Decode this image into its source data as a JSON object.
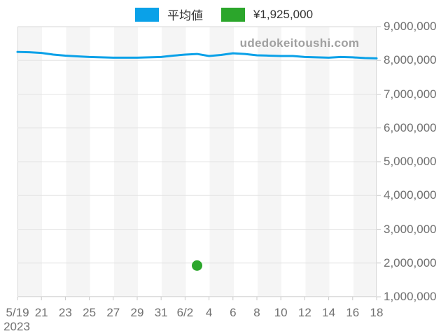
{
  "watermark": "udedokeitoushi.com",
  "legend": {
    "position": "top-center",
    "items": [
      {
        "label": "平均値",
        "color": "#0aa1e8"
      },
      {
        "label": "¥1,925,000",
        "color": "#2ba62b"
      }
    ]
  },
  "chart_data": {
    "type": "line",
    "title": "",
    "xlabel": "",
    "ylabel": "",
    "x_sublabel": "2023",
    "x_labels": [
      "5/19",
      "21",
      "23",
      "25",
      "27",
      "29",
      "31",
      "6/2",
      "4",
      "6",
      "8",
      "10",
      "12",
      "14",
      "16",
      "18"
    ],
    "dates": [
      "5/19",
      "5/20",
      "5/21",
      "5/22",
      "5/23",
      "5/24",
      "5/25",
      "5/26",
      "5/27",
      "5/28",
      "5/29",
      "5/30",
      "5/31",
      "6/1",
      "6/2",
      "6/3",
      "6/4",
      "6/5",
      "6/6",
      "6/7",
      "6/8",
      "6/9",
      "6/10",
      "6/11",
      "6/12",
      "6/13",
      "6/14",
      "6/15",
      "6/16",
      "6/17",
      "6/18"
    ],
    "ylim": [
      1000000,
      9000000
    ],
    "y_ticks": [
      {
        "label": "9,000,000",
        "value": 9000000
      },
      {
        "label": "8,000,000",
        "value": 8000000
      },
      {
        "label": "7,000,000",
        "value": 7000000
      },
      {
        "label": "6,000,000",
        "value": 6000000
      },
      {
        "label": "5,000,000",
        "value": 5000000
      },
      {
        "label": "4,000,000",
        "value": 4000000
      },
      {
        "label": "3,000,000",
        "value": 3000000
      },
      {
        "label": "2,000,000",
        "value": 2000000
      },
      {
        "label": "1,000,000",
        "value": 1000000
      }
    ],
    "grid": "horizontal",
    "plot_band_colors": [
      "#f5f5f5",
      "#ffffff"
    ],
    "legend_position": "top-center",
    "series": [
      {
        "name": "平均値",
        "type": "line",
        "color": "#0aa1e8",
        "values": [
          8250000,
          8240000,
          8220000,
          8170000,
          8140000,
          8120000,
          8100000,
          8090000,
          8080000,
          8080000,
          8080000,
          8090000,
          8100000,
          8140000,
          8170000,
          8190000,
          8130000,
          8160000,
          8210000,
          8190000,
          8150000,
          8140000,
          8130000,
          8130000,
          8100000,
          8090000,
          8080000,
          8100000,
          8090000,
          8070000,
          8060000
        ]
      },
      {
        "name": "¥1,925,000",
        "type": "scatter",
        "color": "#2ba62b",
        "points": [
          {
            "date": "6/3",
            "value": 1925000
          }
        ]
      }
    ]
  }
}
